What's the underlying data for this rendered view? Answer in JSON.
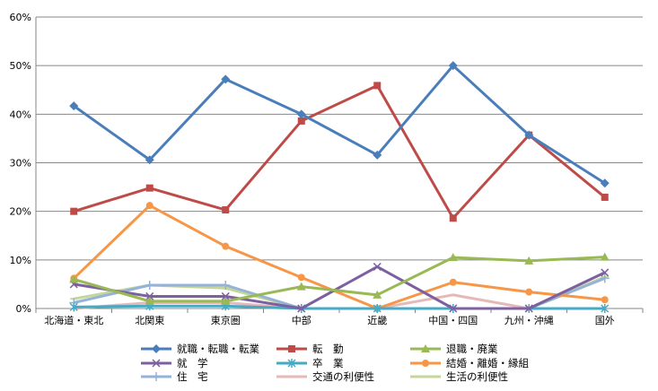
{
  "chart_data": {
    "type": "line",
    "categories": [
      "北海道・東北",
      "北関東",
      "東京圏",
      "中部",
      "近畿",
      "中国・四国",
      "九州・沖縄",
      "国外"
    ],
    "ylim": [
      0,
      60
    ],
    "yticks": [
      "0%",
      "10%",
      "20%",
      "30%",
      "40%",
      "50%",
      "60%"
    ],
    "grid": true,
    "legend_position": "bottom",
    "series": [
      {
        "name": "就職・転職・転業",
        "color": "#4a7ebb",
        "marker": "diamond",
        "values": [
          41.7,
          30.6,
          47.2,
          40.0,
          31.6,
          50.0,
          35.7,
          25.8
        ]
      },
      {
        "name": "転　勤",
        "color": "#be4b48",
        "marker": "square",
        "values": [
          20.0,
          24.8,
          20.3,
          38.6,
          45.9,
          18.6,
          35.7,
          22.9
        ]
      },
      {
        "name": "退職・廃業",
        "color": "#98b954",
        "marker": "triangle",
        "values": [
          6.0,
          1.5,
          1.5,
          4.5,
          2.8,
          10.5,
          9.8,
          10.6
        ]
      },
      {
        "name": "就　学",
        "color": "#7d60a0",
        "marker": "x",
        "values": [
          5.0,
          2.5,
          2.5,
          0.0,
          8.6,
          0.0,
          0.0,
          7.4
        ]
      },
      {
        "name": "卒　業",
        "color": "#46aac5",
        "marker": "star",
        "values": [
          0.3,
          0.5,
          0.5,
          0.0,
          0.0,
          0.0,
          0.0,
          0.0
        ]
      },
      {
        "name": "結婚・離婚・縁組",
        "color": "#f79646",
        "marker": "circle",
        "values": [
          6.2,
          21.2,
          12.8,
          6.4,
          0.0,
          5.4,
          3.4,
          1.8
        ]
      },
      {
        "name": "住　宅",
        "color": "#95b3d7",
        "marker": "plus",
        "values": [
          1.2,
          4.8,
          4.8,
          0.0,
          0.0,
          0.0,
          0.0,
          6.2
        ]
      },
      {
        "name": "交通の利便性",
        "color": "#e6b9b8",
        "marker": "dash",
        "values": [
          0.0,
          1.2,
          1.2,
          0.0,
          0.0,
          2.8,
          0.0,
          0.0
        ]
      },
      {
        "name": "生活の利便性",
        "color": "#c4d79b",
        "marker": "dash",
        "values": [
          2.0,
          4.8,
          4.2,
          0.0,
          0.0,
          0.0,
          0.0,
          6.5
        ]
      }
    ]
  }
}
